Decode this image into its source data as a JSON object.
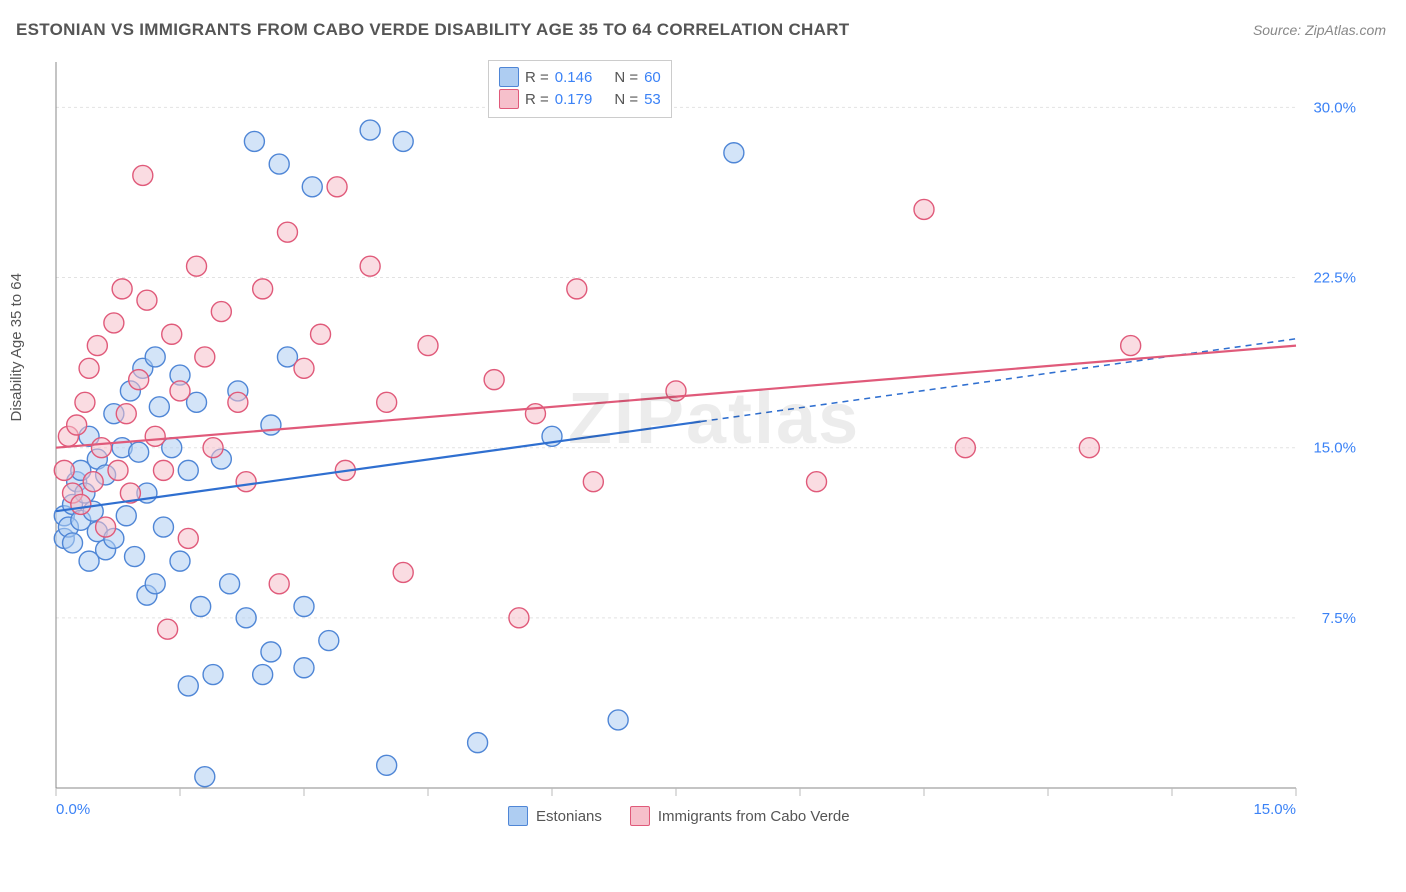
{
  "title": "ESTONIAN VS IMMIGRANTS FROM CABO VERDE DISABILITY AGE 35 TO 64 CORRELATION CHART",
  "source": "Source: ZipAtlas.com",
  "watermark": "ZIPatlas",
  "chart": {
    "type": "scatter",
    "ylabel": "Disability Age 35 to 64",
    "background_color": "#ffffff",
    "grid_color": "#e2e2e2",
    "axis_color": "#888888",
    "tick_color": "#bbbbbb",
    "xlim": [
      0,
      15
    ],
    "ylim": [
      0,
      32
    ],
    "yticks": [
      {
        "v": 7.5,
        "label": "7.5%"
      },
      {
        "v": 15.0,
        "label": "15.0%"
      },
      {
        "v": 22.5,
        "label": "22.5%"
      },
      {
        "v": 30.0,
        "label": "30.0%"
      }
    ],
    "xticks_labeled": [
      {
        "v": 0,
        "label": "0.0%"
      },
      {
        "v": 15,
        "label": "15.0%"
      }
    ],
    "xticks_minor": [
      1.5,
      3,
      4.5,
      6,
      7.5,
      9,
      10.5,
      12,
      13.5
    ],
    "marker_radius": 10,
    "marker_stroke_width": 1.4,
    "label_fontsize": 15,
    "tick_label_color": "#3b82f6",
    "series": [
      {
        "name": "Estonians",
        "fill": "#aecdf2",
        "fill_opacity": 0.55,
        "stroke": "#4f86d6",
        "R": "0.146",
        "N": "60",
        "trend": {
          "x1": 0,
          "y1": 12.2,
          "x2": 15,
          "y2": 19.8,
          "solid_until_x": 7.8,
          "color": "#2f6fd0",
          "width": 2.2
        },
        "points": [
          [
            0.1,
            11.0
          ],
          [
            0.1,
            12.0
          ],
          [
            0.15,
            11.5
          ],
          [
            0.2,
            10.8
          ],
          [
            0.2,
            12.5
          ],
          [
            0.25,
            13.5
          ],
          [
            0.3,
            11.8
          ],
          [
            0.3,
            14.0
          ],
          [
            0.35,
            13.0
          ],
          [
            0.4,
            10.0
          ],
          [
            0.4,
            15.5
          ],
          [
            0.45,
            12.2
          ],
          [
            0.5,
            11.3
          ],
          [
            0.5,
            14.5
          ],
          [
            0.6,
            10.5
          ],
          [
            0.6,
            13.8
          ],
          [
            0.7,
            16.5
          ],
          [
            0.7,
            11.0
          ],
          [
            0.8,
            15.0
          ],
          [
            0.85,
            12.0
          ],
          [
            0.9,
            17.5
          ],
          [
            0.95,
            10.2
          ],
          [
            1.0,
            14.8
          ],
          [
            1.05,
            18.5
          ],
          [
            1.1,
            8.5
          ],
          [
            1.1,
            13.0
          ],
          [
            1.2,
            19.0
          ],
          [
            1.2,
            9.0
          ],
          [
            1.25,
            16.8
          ],
          [
            1.3,
            11.5
          ],
          [
            1.4,
            15.0
          ],
          [
            1.5,
            10.0
          ],
          [
            1.5,
            18.2
          ],
          [
            1.6,
            4.5
          ],
          [
            1.6,
            14.0
          ],
          [
            1.7,
            17.0
          ],
          [
            1.75,
            8.0
          ],
          [
            1.8,
            0.5
          ],
          [
            1.9,
            5.0
          ],
          [
            2.0,
            14.5
          ],
          [
            2.1,
            9.0
          ],
          [
            2.2,
            17.5
          ],
          [
            2.3,
            7.5
          ],
          [
            2.4,
            28.5
          ],
          [
            2.5,
            5.0
          ],
          [
            2.6,
            6.0
          ],
          [
            2.6,
            16.0
          ],
          [
            2.7,
            27.5
          ],
          [
            2.8,
            19.0
          ],
          [
            3.0,
            8.0
          ],
          [
            3.0,
            5.3
          ],
          [
            3.1,
            26.5
          ],
          [
            3.3,
            6.5
          ],
          [
            3.8,
            29.0
          ],
          [
            4.0,
            1.0
          ],
          [
            4.2,
            28.5
          ],
          [
            5.1,
            2.0
          ],
          [
            6.0,
            15.5
          ],
          [
            6.8,
            3.0
          ],
          [
            8.2,
            28.0
          ]
        ]
      },
      {
        "name": "Immigrants from Cabo Verde",
        "fill": "#f6c0cb",
        "fill_opacity": 0.55,
        "stroke": "#e05a7a",
        "R": "0.179",
        "N": "53",
        "trend": {
          "x1": 0,
          "y1": 15.0,
          "x2": 15,
          "y2": 19.5,
          "solid_until_x": 15,
          "color": "#e05a7a",
          "width": 2.2
        },
        "points": [
          [
            0.1,
            14.0
          ],
          [
            0.15,
            15.5
          ],
          [
            0.2,
            13.0
          ],
          [
            0.25,
            16.0
          ],
          [
            0.3,
            12.5
          ],
          [
            0.35,
            17.0
          ],
          [
            0.4,
            18.5
          ],
          [
            0.45,
            13.5
          ],
          [
            0.5,
            19.5
          ],
          [
            0.55,
            15.0
          ],
          [
            0.6,
            11.5
          ],
          [
            0.7,
            20.5
          ],
          [
            0.75,
            14.0
          ],
          [
            0.8,
            22.0
          ],
          [
            0.85,
            16.5
          ],
          [
            0.9,
            13.0
          ],
          [
            1.0,
            18.0
          ],
          [
            1.05,
            27.0
          ],
          [
            1.1,
            21.5
          ],
          [
            1.2,
            15.5
          ],
          [
            1.3,
            14.0
          ],
          [
            1.35,
            7.0
          ],
          [
            1.4,
            20.0
          ],
          [
            1.5,
            17.5
          ],
          [
            1.6,
            11.0
          ],
          [
            1.7,
            23.0
          ],
          [
            1.8,
            19.0
          ],
          [
            1.9,
            15.0
          ],
          [
            2.0,
            21.0
          ],
          [
            2.2,
            17.0
          ],
          [
            2.3,
            13.5
          ],
          [
            2.5,
            22.0
          ],
          [
            2.7,
            9.0
          ],
          [
            2.8,
            24.5
          ],
          [
            3.0,
            18.5
          ],
          [
            3.2,
            20.0
          ],
          [
            3.4,
            26.5
          ],
          [
            3.5,
            14.0
          ],
          [
            3.8,
            23.0
          ],
          [
            4.0,
            17.0
          ],
          [
            4.2,
            9.5
          ],
          [
            4.5,
            19.5
          ],
          [
            5.3,
            18.0
          ],
          [
            5.6,
            7.5
          ],
          [
            5.8,
            16.5
          ],
          [
            6.3,
            22.0
          ],
          [
            6.5,
            13.5
          ],
          [
            7.5,
            17.5
          ],
          [
            9.2,
            13.5
          ],
          [
            10.5,
            25.5
          ],
          [
            11.0,
            15.0
          ],
          [
            12.5,
            15.0
          ],
          [
            13.0,
            19.5
          ]
        ]
      }
    ],
    "legend_bottom": [
      {
        "swatch_fill": "#aecdf2",
        "swatch_stroke": "#4f86d6",
        "label": "Estonians"
      },
      {
        "swatch_fill": "#f6c0cb",
        "swatch_stroke": "#e05a7a",
        "label": "Immigrants from Cabo Verde"
      }
    ],
    "stats_legend": {
      "rows": [
        {
          "swatch_fill": "#aecdf2",
          "swatch_stroke": "#4f86d6",
          "R_label": "R =",
          "R": "0.146",
          "N_label": "N =",
          "N": "60"
        },
        {
          "swatch_fill": "#f6c0cb",
          "swatch_stroke": "#e05a7a",
          "R_label": "R =",
          "R": "0.179",
          "N_label": "N =",
          "N": "53"
        }
      ]
    }
  }
}
